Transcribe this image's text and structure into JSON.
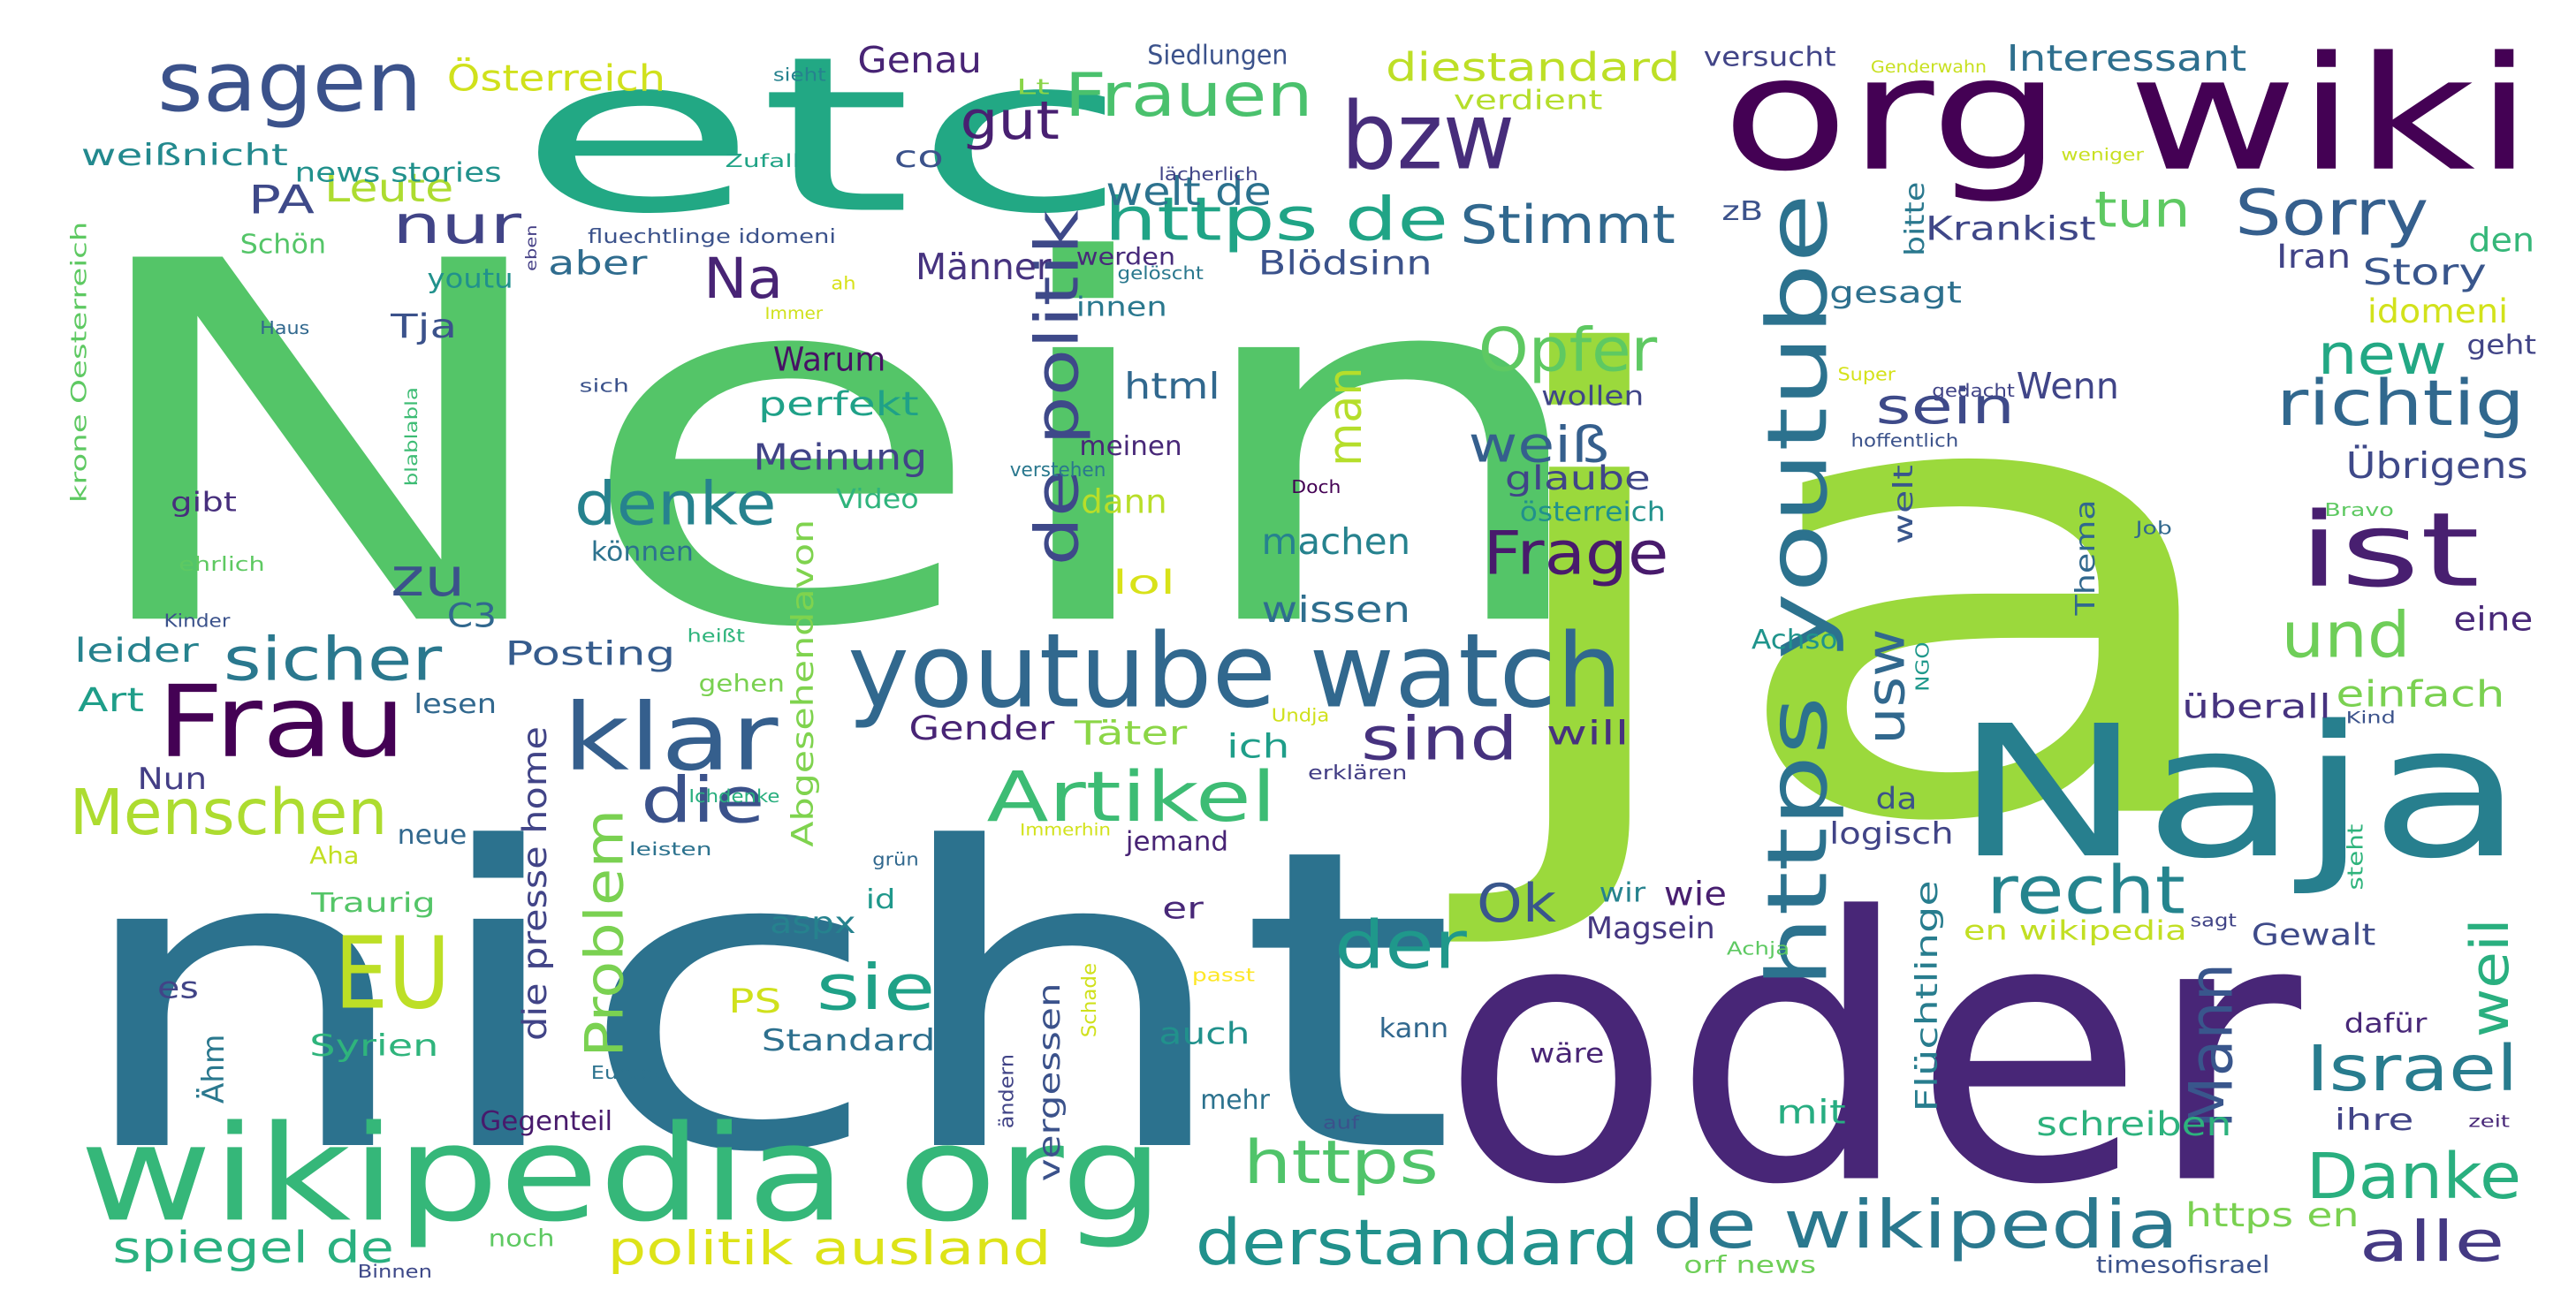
{
  "words": [
    {
      "text": "Nein",
      "color": "#54c568"
    },
    {
      "text": "ja",
      "color": "#9bd93c"
    },
    {
      "text": "nicht",
      "color": "#2c728e"
    },
    {
      "text": "oder",
      "color": "#482677"
    },
    {
      "text": "etc",
      "color": "#22a884"
    },
    {
      "text": "org wiki",
      "color": "#440154"
    },
    {
      "text": "wikipedia org",
      "color": "#35b779"
    },
    {
      "text": "Naja",
      "color": "#277f8e"
    },
    {
      "text": "youtube watch",
      "color": "#31688e"
    },
    {
      "text": "sagen",
      "color": "#3b528b"
    },
    {
      "text": "bzw",
      "color": "#472d7b"
    },
    {
      "text": "Frau",
      "color": "#440154"
    },
    {
      "text": "klar",
      "color": "#355f8d"
    },
    {
      "text": "EU",
      "color": "#bddf26"
    },
    {
      "text": "ist",
      "color": "#481f70"
    },
    {
      "text": "https youtube",
      "color": "#2c728e"
    },
    {
      "text": "de wikipedia",
      "color": "#2a788e"
    },
    {
      "text": "derstandard",
      "color": "#21918c"
    },
    {
      "text": "Menschen",
      "color": "#addc30"
    },
    {
      "text": "Artikel",
      "color": "#3dbc74"
    },
    {
      "text": "der",
      "color": "#1f988b"
    },
    {
      "text": "recht",
      "color": "#25848e"
    },
    {
      "text": "https de",
      "color": "#20a486"
    },
    {
      "text": "Frauen",
      "color": "#4ac16d"
    },
    {
      "text": "Opfer",
      "color": "#5ec962"
    },
    {
      "text": "Frage",
      "color": "#481a6c"
    },
    {
      "text": "Danke",
      "color": "#29af7f"
    },
    {
      "text": "alle",
      "color": "#443983"
    },
    {
      "text": "Sorry",
      "color": "#355f8d"
    },
    {
      "text": "richtig",
      "color": "#31688e"
    },
    {
      "text": "Israel",
      "color": "#287c8e"
    },
    {
      "text": "und",
      "color": "#6ece58"
    },
    {
      "text": "https",
      "color": "#50c46a"
    },
    {
      "text": "sicher",
      "color": "#2a788e"
    },
    {
      "text": "denke",
      "color": "#26828e"
    },
    {
      "text": "die",
      "color": "#3b528b"
    },
    {
      "text": "sind",
      "color": "#46327e"
    },
    {
      "text": "Stimmt",
      "color": "#31688e"
    },
    {
      "text": "de politik",
      "color": "#3e4989"
    },
    {
      "text": "Mann",
      "color": "#39568c"
    },
    {
      "text": "nur",
      "color": "#414487"
    },
    {
      "text": "sie",
      "color": "#1fa187"
    },
    {
      "text": "Problem",
      "color": "#7ad151"
    },
    {
      "text": "gut",
      "color": "#482071"
    },
    {
      "text": "new",
      "color": "#22a884"
    },
    {
      "text": "sein",
      "color": "#3e4a89"
    },
    {
      "text": "Na",
      "color": "#482475"
    },
    {
      "text": "zu",
      "color": "#3b528b"
    },
    {
      "text": "usw",
      "color": "#31688e"
    },
    {
      "text": "weil",
      "color": "#29af7f"
    },
    {
      "text": "man",
      "color": "#b5de2b"
    },
    {
      "text": "politik ausland",
      "color": "#dde318"
    },
    {
      "text": "spiegel de",
      "color": "#2ab07f"
    },
    {
      "text": "Ok",
      "color": "#39568c"
    },
    {
      "text": "tun",
      "color": "#5ec962"
    },
    {
      "text": "weiß",
      "color": "#355f8d"
    },
    {
      "text": "diestandard",
      "color": "#bddf26"
    },
    {
      "text": "Leute",
      "color": "#addc30"
    },
    {
      "text": "welt de",
      "color": "#2c728e"
    },
    {
      "text": "PA",
      "color": "#3e4989"
    },
    {
      "text": "Interessant",
      "color": "#2e6f8e"
    },
    {
      "text": "Österreich",
      "color": "#d0e11c"
    },
    {
      "text": "Genau",
      "color": "#482475"
    },
    {
      "text": "Männer",
      "color": "#46337f"
    },
    {
      "text": "Story",
      "color": "#39568c"
    },
    {
      "text": "idomeni",
      "color": "#d2e21b"
    },
    {
      "text": "https en",
      "color": "#7ad151"
    },
    {
      "text": "Krankist",
      "color": "#3f4788"
    },
    {
      "text": "Übrigens",
      "color": "#3e4989"
    },
    {
      "text": "glaube",
      "color": "#404688"
    },
    {
      "text": "Meinung",
      "color": "#414487"
    },
    {
      "text": "machen",
      "color": "#26828e"
    },
    {
      "text": "wissen",
      "color": "#2e6e8e"
    },
    {
      "text": "html",
      "color": "#31688e"
    },
    {
      "text": "Wenn",
      "color": "#404588"
    },
    {
      "text": "perfekt",
      "color": "#1fa188"
    },
    {
      "text": "Warum",
      "color": "#471164"
    },
    {
      "text": "Blödsinn",
      "color": "#3b528b"
    },
    {
      "text": "Tja",
      "color": "#3b528b"
    },
    {
      "text": "aber",
      "color": "#2f6c8e"
    },
    {
      "text": "Posting",
      "color": "#365c8d"
    },
    {
      "text": "Gender",
      "color": "#482475"
    },
    {
      "text": "Täter",
      "color": "#8bd646"
    },
    {
      "text": "will",
      "color": "#46327e"
    },
    {
      "text": "leider",
      "color": "#26828e"
    },
    {
      "text": "Art",
      "color": "#1f9e89"
    },
    {
      "text": "die presse home",
      "color": "#414487"
    },
    {
      "text": "Abgesehendavon",
      "color": "#7fd34e"
    },
    {
      "text": "lol",
      "color": "#d8e219"
    },
    {
      "text": "dann",
      "color": "#b8de29"
    },
    {
      "text": "Video",
      "color": "#2fb47c"
    },
    {
      "text": "österreich",
      "color": "#21918c"
    },
    {
      "text": "können",
      "color": "#2c728e"
    },
    {
      "text": "C3",
      "color": "#31688e"
    },
    {
      "text": "weißnicht",
      "color": "#23898e"
    },
    {
      "text": "news stories",
      "color": "#21918c"
    },
    {
      "text": "co",
      "color": "#3b528b"
    },
    {
      "text": "Schön",
      "color": "#54c568"
    },
    {
      "text": "youtu",
      "color": "#21918c"
    },
    {
      "text": "gibt",
      "color": "#472f7d"
    },
    {
      "text": "gesagt",
      "color": "#2d708e"
    },
    {
      "text": "bitte",
      "color": "#2a788e"
    },
    {
      "text": "Iran",
      "color": "#414487"
    },
    {
      "text": "den",
      "color": "#35b779"
    },
    {
      "text": "geht",
      "color": "#414487"
    },
    {
      "text": "eine",
      "color": "#482878"
    },
    {
      "text": "einfach",
      "color": "#7ad151"
    },
    {
      "text": "überall",
      "color": "#46337f"
    },
    {
      "text": "logisch",
      "color": "#414487"
    },
    {
      "text": "da",
      "color": "#3b528b"
    },
    {
      "text": "Thema",
      "color": "#31688e"
    },
    {
      "text": "Achso",
      "color": "#1f948c"
    },
    {
      "text": "Gewalt",
      "color": "#3e4a89"
    },
    {
      "text": "Flüchtlinge",
      "color": "#287d8e"
    },
    {
      "text": "en wikipedia",
      "color": "#c2df23"
    },
    {
      "text": "welt",
      "color": "#39568c"
    },
    {
      "text": "zB",
      "color": "#3b528b"
    },
    {
      "text": "werden",
      "color": "#472a7a"
    },
    {
      "text": "innen",
      "color": "#2a788e"
    },
    {
      "text": "meinen",
      "color": "#482878"
    },
    {
      "text": "wollen",
      "color": "#404688"
    },
    {
      "text": "Magsein",
      "color": "#453781"
    },
    {
      "text": "wie",
      "color": "#481f70"
    },
    {
      "text": "wir",
      "color": "#26828e"
    },
    {
      "text": "jemand",
      "color": "#482475"
    },
    {
      "text": "ich",
      "color": "#1f9e89"
    },
    {
      "text": "er",
      "color": "#482878"
    },
    {
      "text": "aspx",
      "color": "#26828e"
    },
    {
      "text": "id",
      "color": "#1f988b"
    },
    {
      "text": "PS",
      "color": "#d0e11c"
    },
    {
      "text": "Standard",
      "color": "#2d708e"
    },
    {
      "text": "vergessen",
      "color": "#3b528b"
    },
    {
      "text": "auch",
      "color": "#21918c"
    },
    {
      "text": "mehr",
      "color": "#2c728e"
    },
    {
      "text": "mit",
      "color": "#27ad81"
    },
    {
      "text": "schreiben",
      "color": "#2db27d"
    },
    {
      "text": "ihre",
      "color": "#414487"
    },
    {
      "text": "dafür",
      "color": "#482878"
    },
    {
      "text": "wäre",
      "color": "#482475"
    },
    {
      "text": "kann",
      "color": "#31688e"
    },
    {
      "text": "Syrien",
      "color": "#2fb47c"
    },
    {
      "text": "Traurig",
      "color": "#54c568"
    },
    {
      "text": "es",
      "color": "#414487"
    },
    {
      "text": "Ähm",
      "color": "#2a788e"
    },
    {
      "text": "Nun",
      "color": "#433e85"
    },
    {
      "text": "neue",
      "color": "#31688e"
    },
    {
      "text": "gehen",
      "color": "#7ad151"
    },
    {
      "text": "lesen",
      "color": "#31688e"
    },
    {
      "text": "Gegenteil",
      "color": "#481a6c"
    },
    {
      "text": "noch",
      "color": "#5ec962"
    },
    {
      "text": "orf news",
      "color": "#6ece58"
    },
    {
      "text": "timesofisrael",
      "color": "#3b528b"
    },
    {
      "text": "Binnen",
      "color": "#3e4989"
    },
    {
      "text": "Siedlungen",
      "color": "#3b528b"
    },
    {
      "text": "versucht",
      "color": "#414487"
    },
    {
      "text": "verdient",
      "color": "#b5de2b"
    },
    {
      "text": "Genderwahn",
      "color": "#c8e020"
    },
    {
      "text": "weniger",
      "color": "#c8e020"
    },
    {
      "text": "lächerlich",
      "color": "#414487"
    },
    {
      "text": "Lt",
      "color": "#89d548"
    },
    {
      "text": "sieht",
      "color": "#26828e"
    },
    {
      "text": "Zufall",
      "color": "#20a386"
    },
    {
      "text": "fluechtlinge idomeni",
      "color": "#3b528b"
    },
    {
      "text": "eben",
      "color": "#433e85"
    },
    {
      "text": "gelöscht",
      "color": "#2a788e"
    },
    {
      "text": "ah",
      "color": "#d8e219"
    },
    {
      "text": "Immer",
      "color": "#d0e11c"
    },
    {
      "text": "Haus",
      "color": "#31688e"
    },
    {
      "text": "sich",
      "color": "#3b528b"
    },
    {
      "text": "krone Oesterreich",
      "color": "#5ec962"
    },
    {
      "text": "blablabla",
      "color": "#3dbc74"
    },
    {
      "text": "gedacht",
      "color": "#414487"
    },
    {
      "text": "Super",
      "color": "#d5e21a"
    },
    {
      "text": "hoffentlich",
      "color": "#3b528b"
    },
    {
      "text": "verstehen",
      "color": "#2a788e"
    },
    {
      "text": "Doch",
      "color": "#440154"
    },
    {
      "text": "Job",
      "color": "#31688e"
    },
    {
      "text": "Bravo",
      "color": "#5ec962"
    },
    {
      "text": "ehrlich",
      "color": "#5ec962"
    },
    {
      "text": "Kinder",
      "color": "#3b528b"
    },
    {
      "text": "heißt",
      "color": "#2fb47c"
    },
    {
      "text": "NGO",
      "color": "#1f988b"
    },
    {
      "text": "Undja",
      "color": "#d0e11c"
    },
    {
      "text": "Kind",
      "color": "#3b528b"
    },
    {
      "text": "Ichdenke",
      "color": "#29af7f"
    },
    {
      "text": "erklären",
      "color": "#433e85"
    },
    {
      "text": "leisten",
      "color": "#2c728e"
    },
    {
      "text": "grün",
      "color": "#31688e"
    },
    {
      "text": "Immerhin",
      "color": "#d2e21b"
    },
    {
      "text": "steht",
      "color": "#2fb47c"
    },
    {
      "text": "sagt",
      "color": "#414487"
    },
    {
      "text": "Achja",
      "color": "#5ec962"
    },
    {
      "text": "Aha",
      "color": "#c2df23"
    },
    {
      "text": "passt",
      "color": "#fde725"
    },
    {
      "text": "Schade",
      "color": "#d0e11c"
    },
    {
      "text": "Europa",
      "color": "#2c728e"
    },
    {
      "text": "ändern",
      "color": "#414487"
    },
    {
      "text": "auf",
      "color": "#3b528b"
    },
    {
      "text": "zeit",
      "color": "#482878"
    }
  ]
}
